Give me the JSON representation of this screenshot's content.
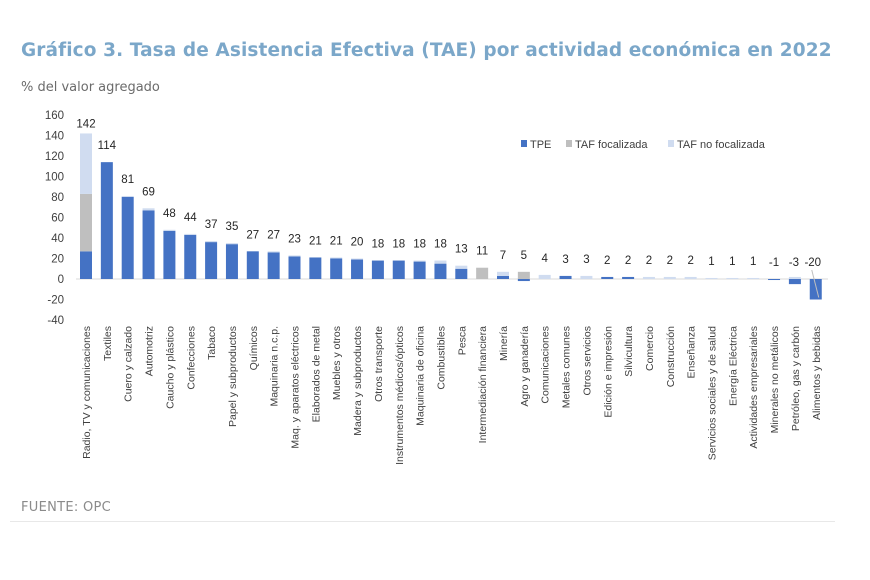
{
  "header": {
    "title": "Gráfico 3. Tasa de Asistencia Efectiva (TAE) por actividad económica en 2022",
    "subtitle": "% del valor agregado"
  },
  "footer": {
    "source": "FUENTE: OPC"
  },
  "chart_data": {
    "type": "bar",
    "stacked": true,
    "title": "Gráfico 3. Tasa de Asistencia Efectiva (TAE) por actividad económica en 2022",
    "ylabel": "% del valor agregado",
    "xlabel": "",
    "ylim": [
      -40,
      160
    ],
    "yticks": [
      160,
      140,
      120,
      100,
      80,
      60,
      40,
      20,
      0,
      -20,
      -40
    ],
    "legend_position": "top-right",
    "colors": {
      "TPE": "#4472c4",
      "TAF focalizada": "#bfbfbf",
      "TAF no focalizada": "#d0dcf0"
    },
    "categories": [
      "Radio, TV y comunicaciones",
      "Textiles",
      "Cuero y calzado",
      "Automotriz",
      "Caucho y plástico",
      "Confecciones",
      "Tabaco",
      "Papel y subproductos",
      "Químicos",
      "Maquinaria n.c.p.",
      "Maq. y aparatos eléctricos",
      "Elaborados de metal",
      "Muebles y otros",
      "Madera y subproductos",
      "Otros transporte",
      "Instrumentos médicos/ópticos",
      "Maquinaria de oficina",
      "Combustibles",
      "Pesca",
      "Intermediación financiera",
      "Minería",
      "Agro y ganadería",
      "Comunicaciones",
      "Metales comunes",
      "Otros servicios",
      "Edición e impresión",
      "Silvicultura",
      "Comercio",
      "Construcción",
      "Enseñanza",
      "Servicios sociales y de salud",
      "Energía Eléctrica",
      "Actividades empresariales",
      "Minerales no metálicos",
      "Petróleo, gas y carbón",
      "Alimentos y bebidas"
    ],
    "totals": [
      142,
      114,
      81,
      69,
      48,
      44,
      37,
      35,
      27,
      27,
      23,
      21,
      21,
      20,
      18,
      18,
      18,
      18,
      13,
      11,
      7,
      5,
      4,
      3,
      3,
      2,
      2,
      2,
      2,
      2,
      1,
      1,
      1,
      -1,
      -3,
      -20
    ],
    "series": [
      {
        "name": "TPE",
        "values": [
          27,
          114,
          80,
          67,
          47,
          43,
          36,
          34,
          27,
          26,
          22,
          21,
          20,
          19,
          18,
          18,
          17,
          15,
          10,
          0,
          3,
          -2,
          0,
          3,
          0,
          2,
          2,
          0,
          0,
          0,
          0,
          0,
          0,
          -1,
          -5,
          -20
        ]
      },
      {
        "name": "TAF focalizada",
        "values": [
          56,
          0,
          0,
          0,
          0,
          0,
          0,
          0,
          0,
          0,
          0,
          0,
          0,
          0,
          0,
          0,
          0,
          0,
          0,
          11,
          0,
          7,
          0,
          0,
          0,
          0,
          0,
          0,
          0,
          0,
          0,
          0,
          0,
          0,
          0,
          0
        ]
      },
      {
        "name": "TAF no focalizada",
        "values": [
          59,
          0,
          1,
          2,
          1,
          1,
          1,
          1,
          0,
          1,
          1,
          0,
          1,
          1,
          0,
          0,
          1,
          3,
          3,
          0,
          4,
          0,
          4,
          0,
          3,
          0,
          0,
          2,
          2,
          2,
          1,
          1,
          1,
          0,
          2,
          0
        ]
      }
    ]
  }
}
